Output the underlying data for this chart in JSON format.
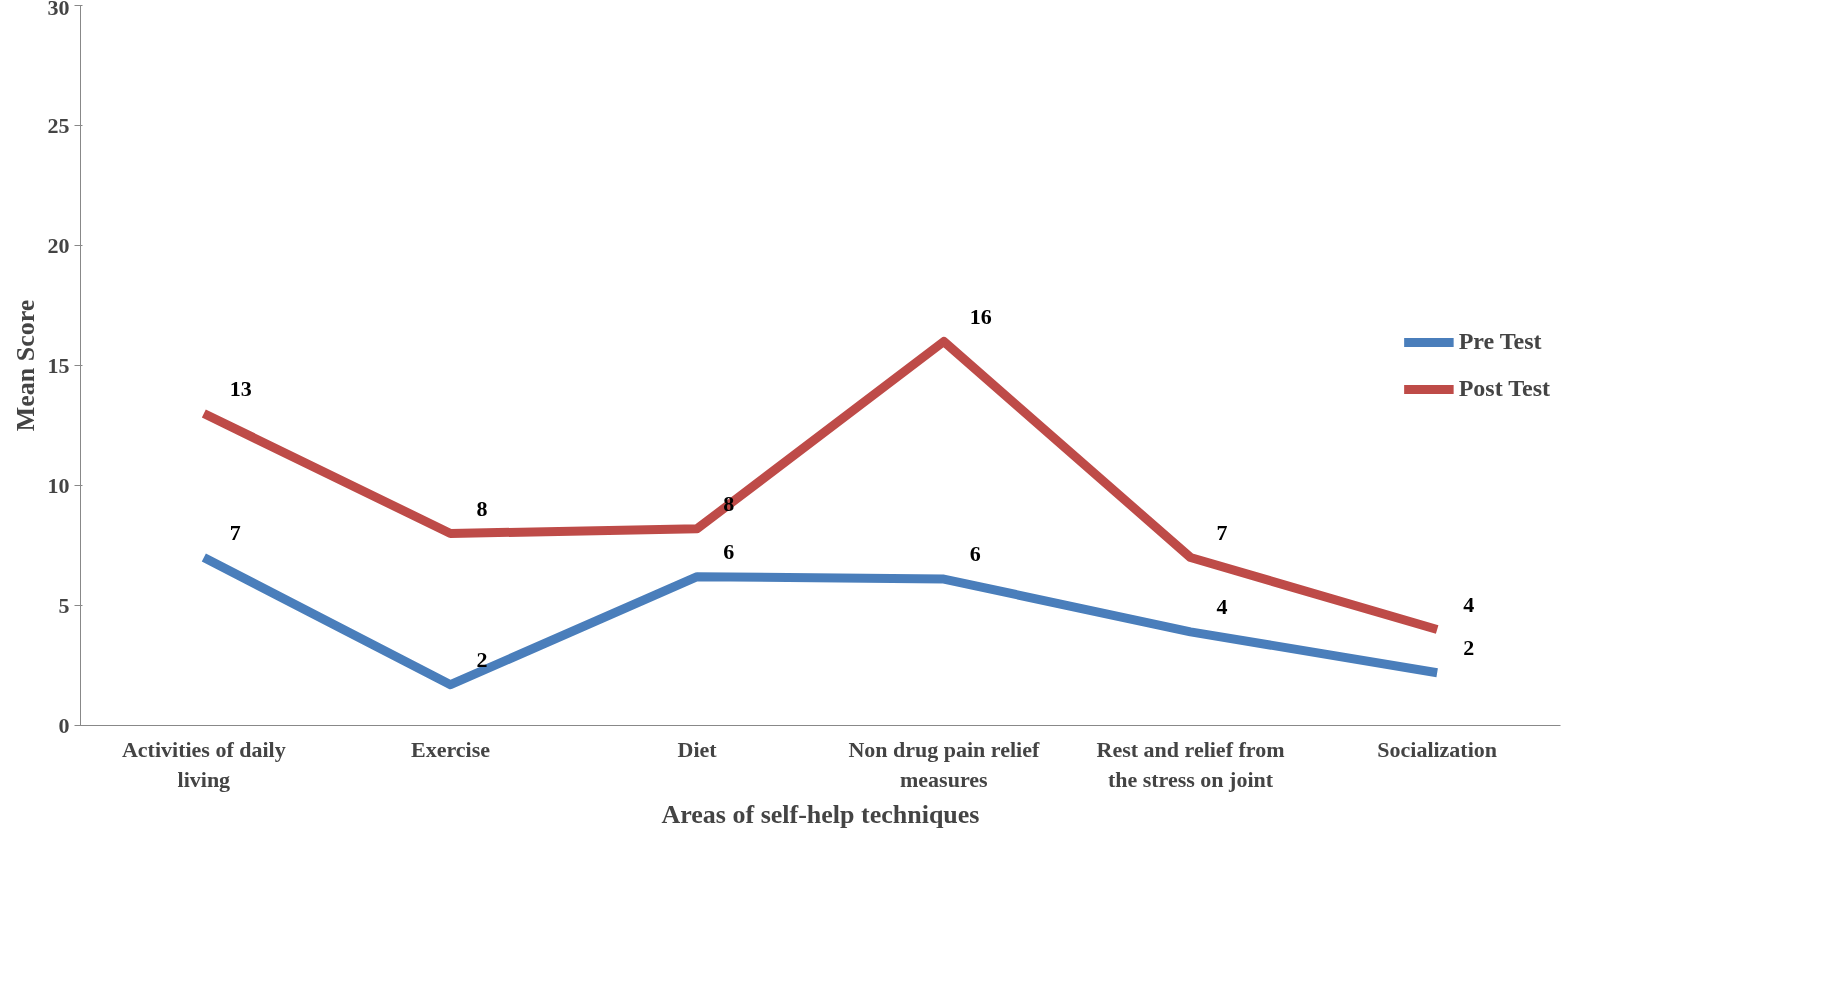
{
  "chart_data": {
    "type": "line",
    "xlabel": "Areas of self-help techniques",
    "ylabel": "Mean Score",
    "categories": [
      "Activities of daily living",
      "Exercise",
      "Diet",
      "Non drug pain relief measures",
      "Rest and relief from the stress on joint",
      "Socialization"
    ],
    "series": [
      {
        "name": "Pre Test",
        "color": "#4a7ebb",
        "values": [
          7.0,
          1.7,
          6.2,
          6.1,
          3.9,
          2.2
        ],
        "value_labels": [
          "7",
          "2",
          "6",
          "6",
          "4",
          "2"
        ]
      },
      {
        "name": "Post Test",
        "color": "#be4b48",
        "values": [
          13.0,
          8.0,
          8.2,
          16.0,
          7.0,
          4.0
        ],
        "value_labels": [
          "13",
          "8",
          "8",
          "16",
          "7",
          "4"
        ]
      }
    ],
    "ylim": [
      0,
      30
    ],
    "yticks": [
      0,
      5,
      10,
      15,
      20,
      25,
      30
    ],
    "grid": false,
    "legend": "right",
    "marker": "none",
    "line_style": "solid"
  }
}
